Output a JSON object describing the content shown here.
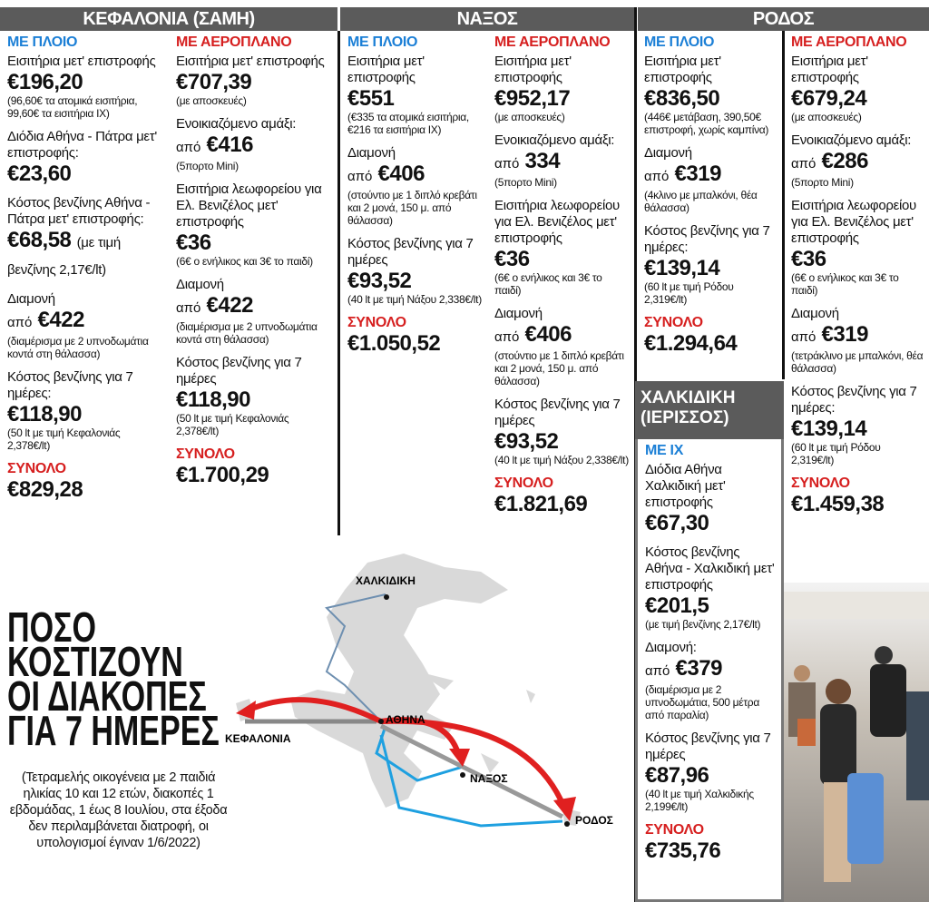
{
  "sections": [
    {
      "title": "ΚΕΦΑΛΟΝΙΑ (ΣΑΜΗ)",
      "columns": [
        {
          "heading": "ΜΕ ΠΛΟΙΟ",
          "items": [
            {
              "label": "Εισιτήρια μετ' επιστροφής",
              "price": "€196,20",
              "note": "(96,60€ τα ατομικά εισιτήρια, 99,60€ τα εισιτήρια ΙΧ)"
            },
            {
              "label": "Διόδια Αθήνα - Πάτρα μετ' επιστροφής:",
              "price": "€23,60"
            },
            {
              "label": "Κόστος βενζίνης Αθήνα - Πάτρα μετ' επιστροφής:",
              "price": "€68,58",
              "suffix": "(με τιμή βενζίνης 2,17€/lt)"
            },
            {
              "label": "Διαμονή",
              "prefix": "από",
              "price": "€422",
              "note": "(διαμέρισμα με 2 υπνοδωμάτια κοντά στη θάλασσα)"
            },
            {
              "label": "Κόστος βενζίνης για 7 ημέρες:",
              "price": "€118,90",
              "note": "(50 lt με τιμή Κεφαλονιάς 2,378€/lt)"
            },
            {
              "total_label": "ΣΥΝΟΛΟ",
              "price": "€829,28"
            }
          ]
        },
        {
          "heading": "ΜΕ ΑΕΡΟΠΛΑΝΟ",
          "items": [
            {
              "label": "Εισιτήρια μετ' επιστροφής",
              "price": "€707,39",
              "note": "(με αποσκευές)"
            },
            {
              "label": "Ενοικιαζόμενο αμάξι:",
              "prefix": "από",
              "price": "€416",
              "note": "(5πορτο Mini)"
            },
            {
              "label": "Εισιτήρια λεωφορείου για Ελ. Βενιζέλος μετ' επιστροφής",
              "price": "€36",
              "note": "(6€ ο ενήλικος και 3€ το παιδί)"
            },
            {
              "label": "Διαμονή",
              "prefix": "από",
              "price": "€422",
              "note": "(διαμέρισμα με 2 υπνοδωμάτια κοντά στη θάλασσα)"
            },
            {
              "label": "Κόστος βενζίνης για 7 ημέρες",
              "price": "€118,90",
              "note": "(50 lt με τιμή Κεφαλονιάς 2,378€/lt)"
            },
            {
              "total_label": "ΣΥΝΟΛΟ",
              "price": "€1.700,29"
            }
          ]
        }
      ]
    },
    {
      "title": "ΝΑΞΟΣ",
      "columns": [
        {
          "heading": "ΜΕ ΠΛΟΙΟ",
          "items": [
            {
              "label": "Εισιτήρια μετ' επιστροφής",
              "price": "€551",
              "note": "(€335 τα ατομικά εισιτήρια, €216 τα εισιτήρια ΙΧ)"
            },
            {
              "label": "Διαμονή",
              "prefix": "από",
              "price": "€406",
              "note": "(στούντιο με 1 διπλό κρεβάτι και 2 μονά, 150 μ. από θάλασσα)"
            },
            {
              "label": "Κόστος βενζίνης για 7 ημέρες",
              "price": "€93,52",
              "note": "(40 lt με τιμή Νάξου 2,338€/lt)"
            },
            {
              "total_label": "ΣΥΝΟΛΟ",
              "price": "€1.050,52"
            }
          ]
        },
        {
          "heading": "ΜΕ ΑΕΡΟΠΛΑΝΟ",
          "items": [
            {
              "label": "Εισιτήρια μετ' επιστροφής",
              "price": "€952,17",
              "note": "(με αποσκευές)"
            },
            {
              "label": "Ενοικιαζόμενο αμάξι:",
              "prefix": "από",
              "price": "334",
              "note": "(5πορτο Mini)"
            },
            {
              "label": "Εισιτήρια λεωφορείου για Ελ. Βενιζέλος μετ' επιστροφής",
              "price": "€36",
              "note": "(6€ ο ενήλικος και 3€ το παιδί)"
            },
            {
              "label": "Διαμονή",
              "prefix": "από",
              "price": "€406",
              "note": "(στούντιο με 1 διπλό κρεβάτι και 2 μονά, 150 μ. από θάλασσα)"
            },
            {
              "label": "Κόστος βενζίνης για 7 ημέρες",
              "price": "€93,52",
              "note": "(40 lt με τιμή Νάξου 2,338€/lt)"
            },
            {
              "total_label": "ΣΥΝΟΛΟ",
              "price": "€1.821,69"
            }
          ]
        }
      ]
    },
    {
      "title": "ΡΟΔΟΣ",
      "columns": [
        {
          "heading": "ΜΕ ΠΛΟΙΟ",
          "items": [
            {
              "label": "Εισιτήρια μετ' επιστροφής",
              "price": "€836,50",
              "note": "(446€ μετάβαση, 390,50€ επιστροφή, χωρίς καμπίνα)"
            },
            {
              "label": "Διαμονή",
              "prefix": "από",
              "price": "€319",
              "note": "(4κλινο με μπαλκόνι, θέα θάλασσα)"
            },
            {
              "label": "Κόστος βενζίνης για 7 ημέρες:",
              "price": "€139,14",
              "note": "(60 lt με τιμή Ρόδου 2,319€/lt)"
            },
            {
              "total_label": "ΣΥΝΟΛΟ",
              "price": "€1.294,64"
            }
          ]
        },
        {
          "heading": "ΜΕ ΑΕΡΟΠΛΑΝΟ",
          "items": [
            {
              "label": "Εισιτήρια μετ' επιστροφής",
              "price": "€679,24",
              "note": "(με αποσκευές)"
            },
            {
              "label": "Ενοικιαζόμενο αμάξι:",
              "prefix": "από",
              "price": "€286",
              "note": "(5πορτο Mini)"
            },
            {
              "label": "Εισιτήρια λεωφορείου για Ελ. Βενιζέλος μετ' επιστροφής",
              "price": "€36",
              "note": "(6€ ο ενήλικος και 3€ το παιδί)"
            },
            {
              "label": "Διαμονή",
              "prefix": "από",
              "price": "€319",
              "note": "(τετράκλινο με μπαλκόνι, θέα θάλασσα)"
            },
            {
              "label": "Κόστος βενζίνης για 7 ημέρες:",
              "price": "€139,14",
              "note": "(60 lt με τιμή Ρόδου 2,319€/lt)"
            },
            {
              "total_label": "ΣΥΝΟΛΟ",
              "price": "€1.459,38"
            }
          ]
        }
      ]
    },
    {
      "title": "ΧΑΛΚΙΔΙΚΗ (ΙΕΡΙΣΣΟΣ)",
      "columns": [
        {
          "heading": "ΜΕ ΙΧ",
          "items": [
            {
              "label": "Διόδια Αθήνα Χαλκιδική μετ' επιστροφής",
              "price": "€67,30"
            },
            {
              "label": "Κόστος βενζίνης Αθήνα - Χαλκιδική μετ' επιστροφής",
              "price": "€201,5",
              "note": "(με τιμή βενζίνης 2,17€/lt)"
            },
            {
              "label": "Διαμονή:",
              "prefix": "από",
              "price": "€379",
              "note": "(διαμέρισμα με 2 υπνοδωμάτια, 500 μέτρα από παραλία)"
            },
            {
              "label": "Κόστος βενζίνης για 7 ημέρες",
              "price": "€87,96",
              "note": "(40 lt με τιμή Χαλκιδικής 2,199€/lt)"
            },
            {
              "total_label": "ΣΥΝΟΛΟ",
              "price": "€735,76"
            }
          ]
        }
      ]
    }
  ],
  "headline": [
    "ΠΟΣΟ",
    "ΚΟΣΤΙΖΟΥΝ",
    "ΟΙ ΔΙΑΚΟΠΕΣ",
    "ΓΙΑ 7 ΗΜΕΡΕΣ"
  ],
  "note": "(Τετραμελής οικογένεια με 2 παιδιά ηλικίας 10 και 12 ετών, διακοπές 1 εβδομάδας, 1 έως 8 Ιουλίου, στα έξοδα δεν περιλαμβάνεται διατροφή, οι υπολογισμοί έγιναν 1/6/2022)",
  "map": {
    "places": [
      "ΧΑΛΚΙΔΙΚΗ",
      "ΚΕΦΑΛΟΝΙΑ",
      "ΑΘΗΝΑ",
      "ΝΑΞΟΣ",
      "ΡΟΔΟΣ"
    ]
  }
}
